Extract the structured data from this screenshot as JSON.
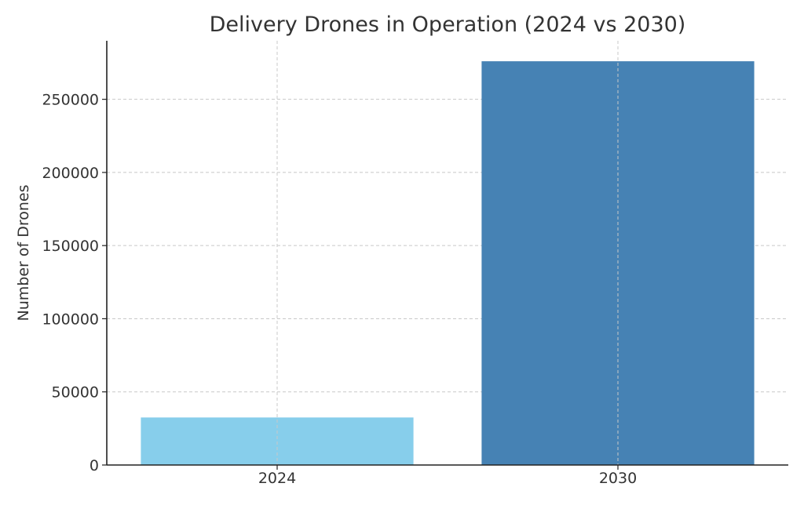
{
  "chart_data": {
    "type": "bar",
    "title": "Delivery Drones in Operation (2024 vs 2030)",
    "xlabel": "",
    "ylabel": "Number of Drones",
    "categories": [
      "2024",
      "2030"
    ],
    "values": [
      32500,
      276000
    ],
    "bar_colors": [
      "#87ceeb",
      "#4682b4"
    ],
    "ylim": [
      0,
      290000
    ],
    "yticks": [
      0,
      50000,
      100000,
      150000,
      200000,
      250000
    ],
    "ytick_labels": [
      "0",
      "50000",
      "100000",
      "150000",
      "200000",
      "250000"
    ],
    "grid": true,
    "grid_style": "dashed",
    "legend": "none"
  }
}
